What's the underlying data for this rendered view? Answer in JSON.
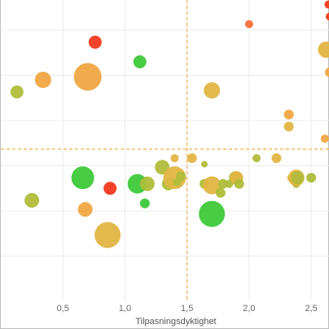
{
  "chart_data": {
    "type": "scatter",
    "bubble": true,
    "xlabel": "Tilpasningsdyktighet",
    "ylabel": "",
    "xlim": [
      0.0,
      2.65
    ],
    "ylim": [
      0.0,
      10.0
    ],
    "x_ticks": [
      {
        "value": 0.5,
        "label": "0,5"
      },
      {
        "value": 1.0,
        "label": "1,0"
      },
      {
        "value": 1.5,
        "label": "1,5"
      },
      {
        "value": 2.0,
        "label": "2,0"
      },
      {
        "value": 2.5,
        "label": "2,5"
      }
    ],
    "y_gridlines": [
      1.5,
      3.0,
      4.5,
      6.0,
      7.5,
      9.0
    ],
    "grid": true,
    "reference_lines": {
      "x": 1.5,
      "y": 5.05,
      "color": "#f2b04d",
      "style": "dashed"
    },
    "colors": {
      "red": "#f23a1e",
      "orange_red": "#f5703a",
      "amber": "#f0a742",
      "gold": "#e2b545",
      "olive": "#afbd3a",
      "green": "#3dc93a"
    },
    "points": [
      {
        "x": 0.13,
        "y": 6.95,
        "size": 8,
        "color": "olive"
      },
      {
        "x": 0.34,
        "y": 7.35,
        "size": 10,
        "color": "amber"
      },
      {
        "x": 0.7,
        "y": 7.45,
        "size": 17,
        "color": "amber"
      },
      {
        "x": 0.76,
        "y": 8.6,
        "size": 8,
        "color": "red"
      },
      {
        "x": 1.12,
        "y": 7.95,
        "size": 8,
        "color": "green"
      },
      {
        "x": 2.0,
        "y": 9.2,
        "size": 5,
        "color": "orange_red"
      },
      {
        "x": 2.64,
        "y": 9.85,
        "size": 5,
        "color": "red"
      },
      {
        "x": 2.65,
        "y": 9.45,
        "size": 5,
        "color": "red"
      },
      {
        "x": 2.62,
        "y": 8.35,
        "size": 10,
        "color": "gold"
      },
      {
        "x": 2.65,
        "y": 7.6,
        "size": 6,
        "color": "amber"
      },
      {
        "x": 1.7,
        "y": 7.0,
        "size": 10,
        "color": "gold"
      },
      {
        "x": 2.32,
        "y": 6.2,
        "size": 6,
        "color": "amber"
      },
      {
        "x": 2.32,
        "y": 5.8,
        "size": 6,
        "color": "gold"
      },
      {
        "x": 2.61,
        "y": 5.4,
        "size": 5,
        "color": "amber"
      },
      {
        "x": 0.25,
        "y": 3.35,
        "size": 9,
        "color": "olive"
      },
      {
        "x": 0.66,
        "y": 4.1,
        "size": 14,
        "color": "green"
      },
      {
        "x": 0.68,
        "y": 3.05,
        "size": 9,
        "color": "amber"
      },
      {
        "x": 0.88,
        "y": 3.75,
        "size": 8,
        "color": "red"
      },
      {
        "x": 0.86,
        "y": 2.2,
        "size": 16,
        "color": "gold"
      },
      {
        "x": 1.1,
        "y": 3.9,
        "size": 12,
        "color": "green"
      },
      {
        "x": 1.18,
        "y": 3.9,
        "size": 9,
        "color": "olive"
      },
      {
        "x": 1.16,
        "y": 3.25,
        "size": 6,
        "color": "green"
      },
      {
        "x": 1.3,
        "y": 4.45,
        "size": 9,
        "color": "olive"
      },
      {
        "x": 1.35,
        "y": 3.9,
        "size": 8,
        "color": "olive"
      },
      {
        "x": 1.4,
        "y": 4.75,
        "size": 5,
        "color": "gold"
      },
      {
        "x": 1.4,
        "y": 4.1,
        "size": 14,
        "color": "gold"
      },
      {
        "x": 1.42,
        "y": 3.95,
        "size": 5,
        "color": "olive"
      },
      {
        "x": 1.45,
        "y": 4.15,
        "size": 6,
        "color": "olive"
      },
      {
        "x": 1.54,
        "y": 4.75,
        "size": 6,
        "color": "gold"
      },
      {
        "x": 1.64,
        "y": 4.55,
        "size": 4,
        "color": "olive"
      },
      {
        "x": 1.64,
        "y": 3.9,
        "size": 6,
        "color": "olive"
      },
      {
        "x": 1.7,
        "y": 3.85,
        "size": 11,
        "color": "gold"
      },
      {
        "x": 1.7,
        "y": 2.9,
        "size": 16,
        "color": "green"
      },
      {
        "x": 1.77,
        "y": 3.6,
        "size": 6,
        "color": "olive"
      },
      {
        "x": 1.79,
        "y": 3.9,
        "size": 6,
        "color": "olive"
      },
      {
        "x": 1.84,
        "y": 3.9,
        "size": 5,
        "color": "olive"
      },
      {
        "x": 1.89,
        "y": 4.1,
        "size": 8,
        "color": "olive"
      },
      {
        "x": 1.9,
        "y": 4.1,
        "size": 8,
        "color": "gold"
      },
      {
        "x": 1.92,
        "y": 3.9,
        "size": 6,
        "color": "olive"
      },
      {
        "x": 2.06,
        "y": 4.75,
        "size": 5,
        "color": "olive"
      },
      {
        "x": 2.22,
        "y": 4.75,
        "size": 6,
        "color": "gold"
      },
      {
        "x": 2.34,
        "y": 4.1,
        "size": 5,
        "color": "gold"
      },
      {
        "x": 2.38,
        "y": 3.9,
        "size": 5,
        "color": "olive"
      },
      {
        "x": 2.38,
        "y": 4.1,
        "size": 10,
        "color": "gold"
      },
      {
        "x": 2.39,
        "y": 4.1,
        "size": 8,
        "color": "olive"
      },
      {
        "x": 2.5,
        "y": 4.1,
        "size": 6,
        "color": "olive"
      }
    ]
  }
}
